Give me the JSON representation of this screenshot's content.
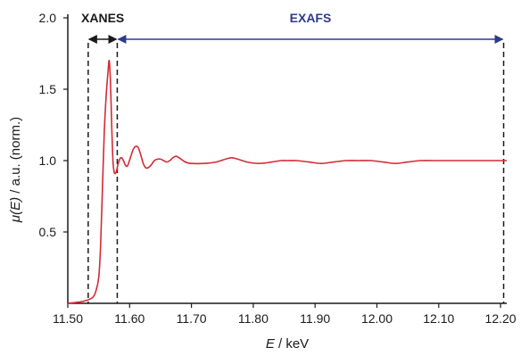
{
  "chart_data": {
    "type": "line",
    "title": "",
    "xlabel_var": "E",
    "xlabel_unit": " / keV",
    "ylabel_var": "μ(E)",
    "ylabel_unit": " / a.u. (norm.)",
    "xlim": [
      11.5,
      12.21
    ],
    "ylim": [
      0,
      2.0
    ],
    "x_ticks": [
      11.5,
      11.6,
      11.7,
      11.8,
      11.9,
      12.0,
      12.1,
      12.2
    ],
    "x_tick_labels": [
      "11.50",
      "11.60",
      "11.70",
      "11.80",
      "11.90",
      "12.00",
      "12.10",
      "12.20"
    ],
    "y_ticks": [
      0.5,
      1.0,
      1.5,
      2.0
    ],
    "y_tick_labels": [
      "0.5",
      "1.0",
      "1.5",
      "2.0"
    ],
    "grid": false,
    "line_color": "#d42a35",
    "axis_color": "#1a1a1a",
    "series": [
      {
        "x": [
          11.5,
          11.52,
          11.53,
          11.54,
          11.545,
          11.55,
          11.553,
          11.556,
          11.559,
          11.562,
          11.565,
          11.567,
          11.569,
          11.571,
          11.573,
          11.575,
          11.577,
          11.579,
          11.581,
          11.584,
          11.587,
          11.59,
          11.593,
          11.596,
          11.599,
          11.602,
          11.606,
          11.61,
          11.614,
          11.618,
          11.622,
          11.626,
          11.63,
          11.635,
          11.64,
          11.645,
          11.65,
          11.655,
          11.66,
          11.665,
          11.67,
          11.675,
          11.68,
          11.69,
          11.7,
          11.72,
          11.74,
          11.755,
          11.765,
          11.775,
          11.79,
          11.81,
          11.83,
          11.845,
          11.855,
          11.87,
          11.89,
          11.91,
          11.93,
          11.95,
          11.97,
          11.99,
          12.01,
          12.03,
          12.05,
          12.07,
          12.09,
          12.11,
          12.13,
          12.15,
          12.17,
          12.19,
          12.21
        ],
        "y": [
          0.0,
          0.01,
          0.02,
          0.04,
          0.08,
          0.18,
          0.4,
          0.8,
          1.2,
          1.45,
          1.62,
          1.7,
          1.55,
          1.25,
          1.0,
          0.92,
          0.91,
          0.93,
          0.97,
          1.01,
          1.02,
          1.0,
          0.97,
          0.96,
          0.99,
          1.03,
          1.08,
          1.1,
          1.09,
          1.04,
          0.98,
          0.95,
          0.95,
          0.97,
          1.0,
          1.01,
          1.01,
          1.0,
          0.99,
          1.0,
          1.02,
          1.03,
          1.02,
          0.99,
          0.98,
          0.98,
          0.99,
          1.01,
          1.02,
          1.01,
          0.99,
          0.98,
          0.99,
          1.0,
          1.0,
          1.0,
          0.99,
          0.98,
          0.99,
          1.0,
          1.0,
          1.0,
          0.99,
          0.98,
          0.99,
          1.0,
          1.0,
          1.0,
          1.0,
          1.0,
          1.0,
          1.0,
          1.0
        ]
      }
    ],
    "regions": [
      {
        "label": "XANES",
        "x_start": 11.533,
        "x_end": 11.58,
        "color": "#1a1a1a"
      },
      {
        "label": "EXAFS",
        "x_start": 11.58,
        "x_end": 12.205,
        "color": "#2e3a8c"
      }
    ],
    "boundary_lines": [
      11.533,
      11.58,
      12.205
    ]
  }
}
